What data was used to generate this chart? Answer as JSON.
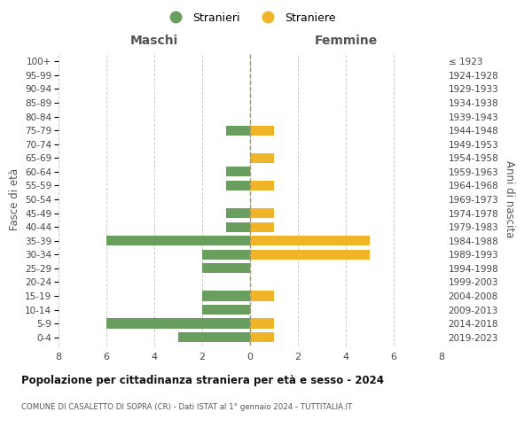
{
  "age_groups": [
    "0-4",
    "5-9",
    "10-14",
    "15-19",
    "20-24",
    "25-29",
    "30-34",
    "35-39",
    "40-44",
    "45-49",
    "50-54",
    "55-59",
    "60-64",
    "65-69",
    "70-74",
    "75-79",
    "80-84",
    "85-89",
    "90-94",
    "95-99",
    "100+"
  ],
  "birth_years": [
    "2019-2023",
    "2014-2018",
    "2009-2013",
    "2004-2008",
    "1999-2003",
    "1994-1998",
    "1989-1993",
    "1984-1988",
    "1979-1983",
    "1974-1978",
    "1969-1973",
    "1964-1968",
    "1959-1963",
    "1954-1958",
    "1949-1953",
    "1944-1948",
    "1939-1943",
    "1934-1938",
    "1929-1933",
    "1924-1928",
    "≤ 1923"
  ],
  "males": [
    3,
    6,
    2,
    2,
    0,
    2,
    2,
    6,
    1,
    1,
    0,
    1,
    1,
    0,
    0,
    1,
    0,
    0,
    0,
    0,
    0
  ],
  "females": [
    1,
    1,
    0,
    1,
    0,
    0,
    5,
    5,
    1,
    1,
    0,
    1,
    0,
    1,
    0,
    1,
    0,
    0,
    0,
    0,
    0
  ],
  "male_color": "#6a9e5e",
  "female_color": "#f0b429",
  "title": "Popolazione per cittadinanza straniera per età e sesso - 2024",
  "subtitle": "COMUNE DI CASALETTO DI SOPRA (CR) - Dati ISTAT al 1° gennaio 2024 - TUTTITALIA.IT",
  "ylabel_left": "Fasce di età",
  "ylabel_right": "Anni di nascita",
  "xlabel_maschi": "Maschi",
  "xlabel_femmine": "Femmine",
  "legend_male": "Stranieri",
  "legend_female": "Straniere",
  "xlim": 8,
  "bg_color": "#ffffff",
  "grid_color": "#cccccc",
  "bar_height": 0.72
}
